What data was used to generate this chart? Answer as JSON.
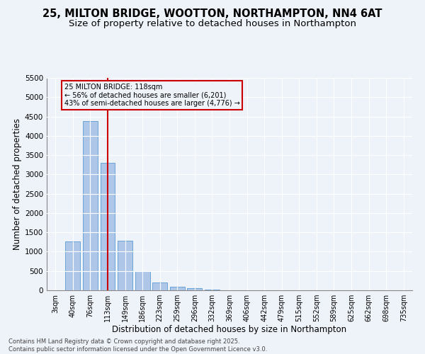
{
  "title": "25, MILTON BRIDGE, WOOTTON, NORTHAMPTON, NN4 6AT",
  "subtitle": "Size of property relative to detached houses in Northampton",
  "xlabel": "Distribution of detached houses by size in Northampton",
  "ylabel": "Number of detached properties",
  "bar_labels": [
    "3sqm",
    "40sqm",
    "76sqm",
    "113sqm",
    "149sqm",
    "186sqm",
    "223sqm",
    "259sqm",
    "296sqm",
    "332sqm",
    "369sqm",
    "406sqm",
    "442sqm",
    "479sqm",
    "515sqm",
    "552sqm",
    "589sqm",
    "625sqm",
    "662sqm",
    "698sqm",
    "735sqm"
  ],
  "bar_values": [
    0,
    1260,
    4380,
    3300,
    1280,
    500,
    200,
    90,
    50,
    15,
    5,
    0,
    0,
    0,
    0,
    0,
    0,
    0,
    0,
    0,
    0
  ],
  "bar_color": "#aec6e8",
  "bar_edge_color": "#5b9bd5",
  "ylim": [
    0,
    5500
  ],
  "yticks": [
    0,
    500,
    1000,
    1500,
    2000,
    2500,
    3000,
    3500,
    4000,
    4500,
    5000,
    5500
  ],
  "vline_x_index": 3,
  "vline_color": "#cc0000",
  "annotation_line1": "25 MILTON BRIDGE: 118sqm",
  "annotation_line2": "← 56% of detached houses are smaller (6,201)",
  "annotation_line3": "43% of semi-detached houses are larger (4,776) →",
  "annotation_box_color": "#cc0000",
  "footer_line1": "Contains HM Land Registry data © Crown copyright and database right 2025.",
  "footer_line2": "Contains public sector information licensed under the Open Government Licence v3.0.",
  "bg_color": "#eef2f9",
  "grid_color": "#ffffff",
  "title_fontsize": 10.5,
  "subtitle_fontsize": 9.5,
  "label_fontsize": 8.5,
  "tick_fontsize": 7,
  "footer_fontsize": 6,
  "ylabel_fontsize": 8.5
}
